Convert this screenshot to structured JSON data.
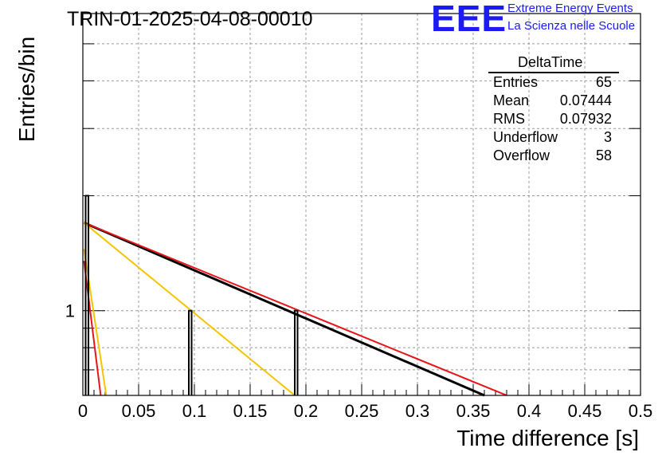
{
  "header": {
    "title": "TRIN-01-2025-04-08-00010",
    "logo_text": "EEE",
    "logo_line1": "Extreme Energy Events",
    "logo_line2": "La Scienza nelle Scuole"
  },
  "colors": {
    "logo": "#1c1cf2",
    "histogram": "#000000",
    "fit_black": "#000000",
    "fit_red": "#e8141a",
    "fit_orange": "#f5c400",
    "grid": "#999999"
  },
  "stats": {
    "title": "DeltaTime",
    "rows": [
      {
        "key": "Entries",
        "value": "65"
      },
      {
        "key": "Mean",
        "value": "0.07444"
      },
      {
        "key": "RMS",
        "value": "0.07932"
      },
      {
        "key": "Underflow",
        "value": "3"
      },
      {
        "key": "Overflow",
        "value": "58"
      }
    ]
  },
  "chart_data": {
    "type": "histogram",
    "xlabel": "Time difference [s]",
    "ylabel": "Entries/bin",
    "xlim": [
      0,
      0.5
    ],
    "ylim": [
      0.6,
      6
    ],
    "y_scale": "log",
    "grid": true,
    "x_ticks": [
      "0",
      "0.05",
      "0.1",
      "0.15",
      "0.2",
      "0.25",
      "0.3",
      "0.35",
      "0.4",
      "0.45",
      "0.5"
    ],
    "y_ticks": [
      "1"
    ],
    "bins": [
      {
        "x0": 0.0025,
        "x1": 0.005,
        "value": 2
      },
      {
        "x0": 0.095,
        "x1": 0.0975,
        "value": 1
      },
      {
        "x0": 0.19,
        "x1": 0.1925,
        "value": 1
      }
    ],
    "curves": [
      {
        "color_key": "fit_black",
        "points": [
          [
            0.001,
            1.7
          ],
          [
            0.36,
            0.6
          ]
        ]
      },
      {
        "color_key": "fit_red",
        "points": [
          [
            0.001,
            1.7
          ],
          [
            0.38,
            0.6
          ]
        ]
      },
      {
        "color_key": "fit_orange",
        "points": [
          [
            0.001,
            1.7
          ],
          [
            0.19,
            0.6
          ]
        ]
      },
      {
        "color_key": "fit_orange",
        "points": [
          [
            0.001,
            1.45
          ],
          [
            0.021,
            0.6
          ]
        ]
      },
      {
        "color_key": "fit_red",
        "points": [
          [
            0.001,
            1.35
          ],
          [
            0.016,
            0.6
          ]
        ]
      }
    ]
  }
}
